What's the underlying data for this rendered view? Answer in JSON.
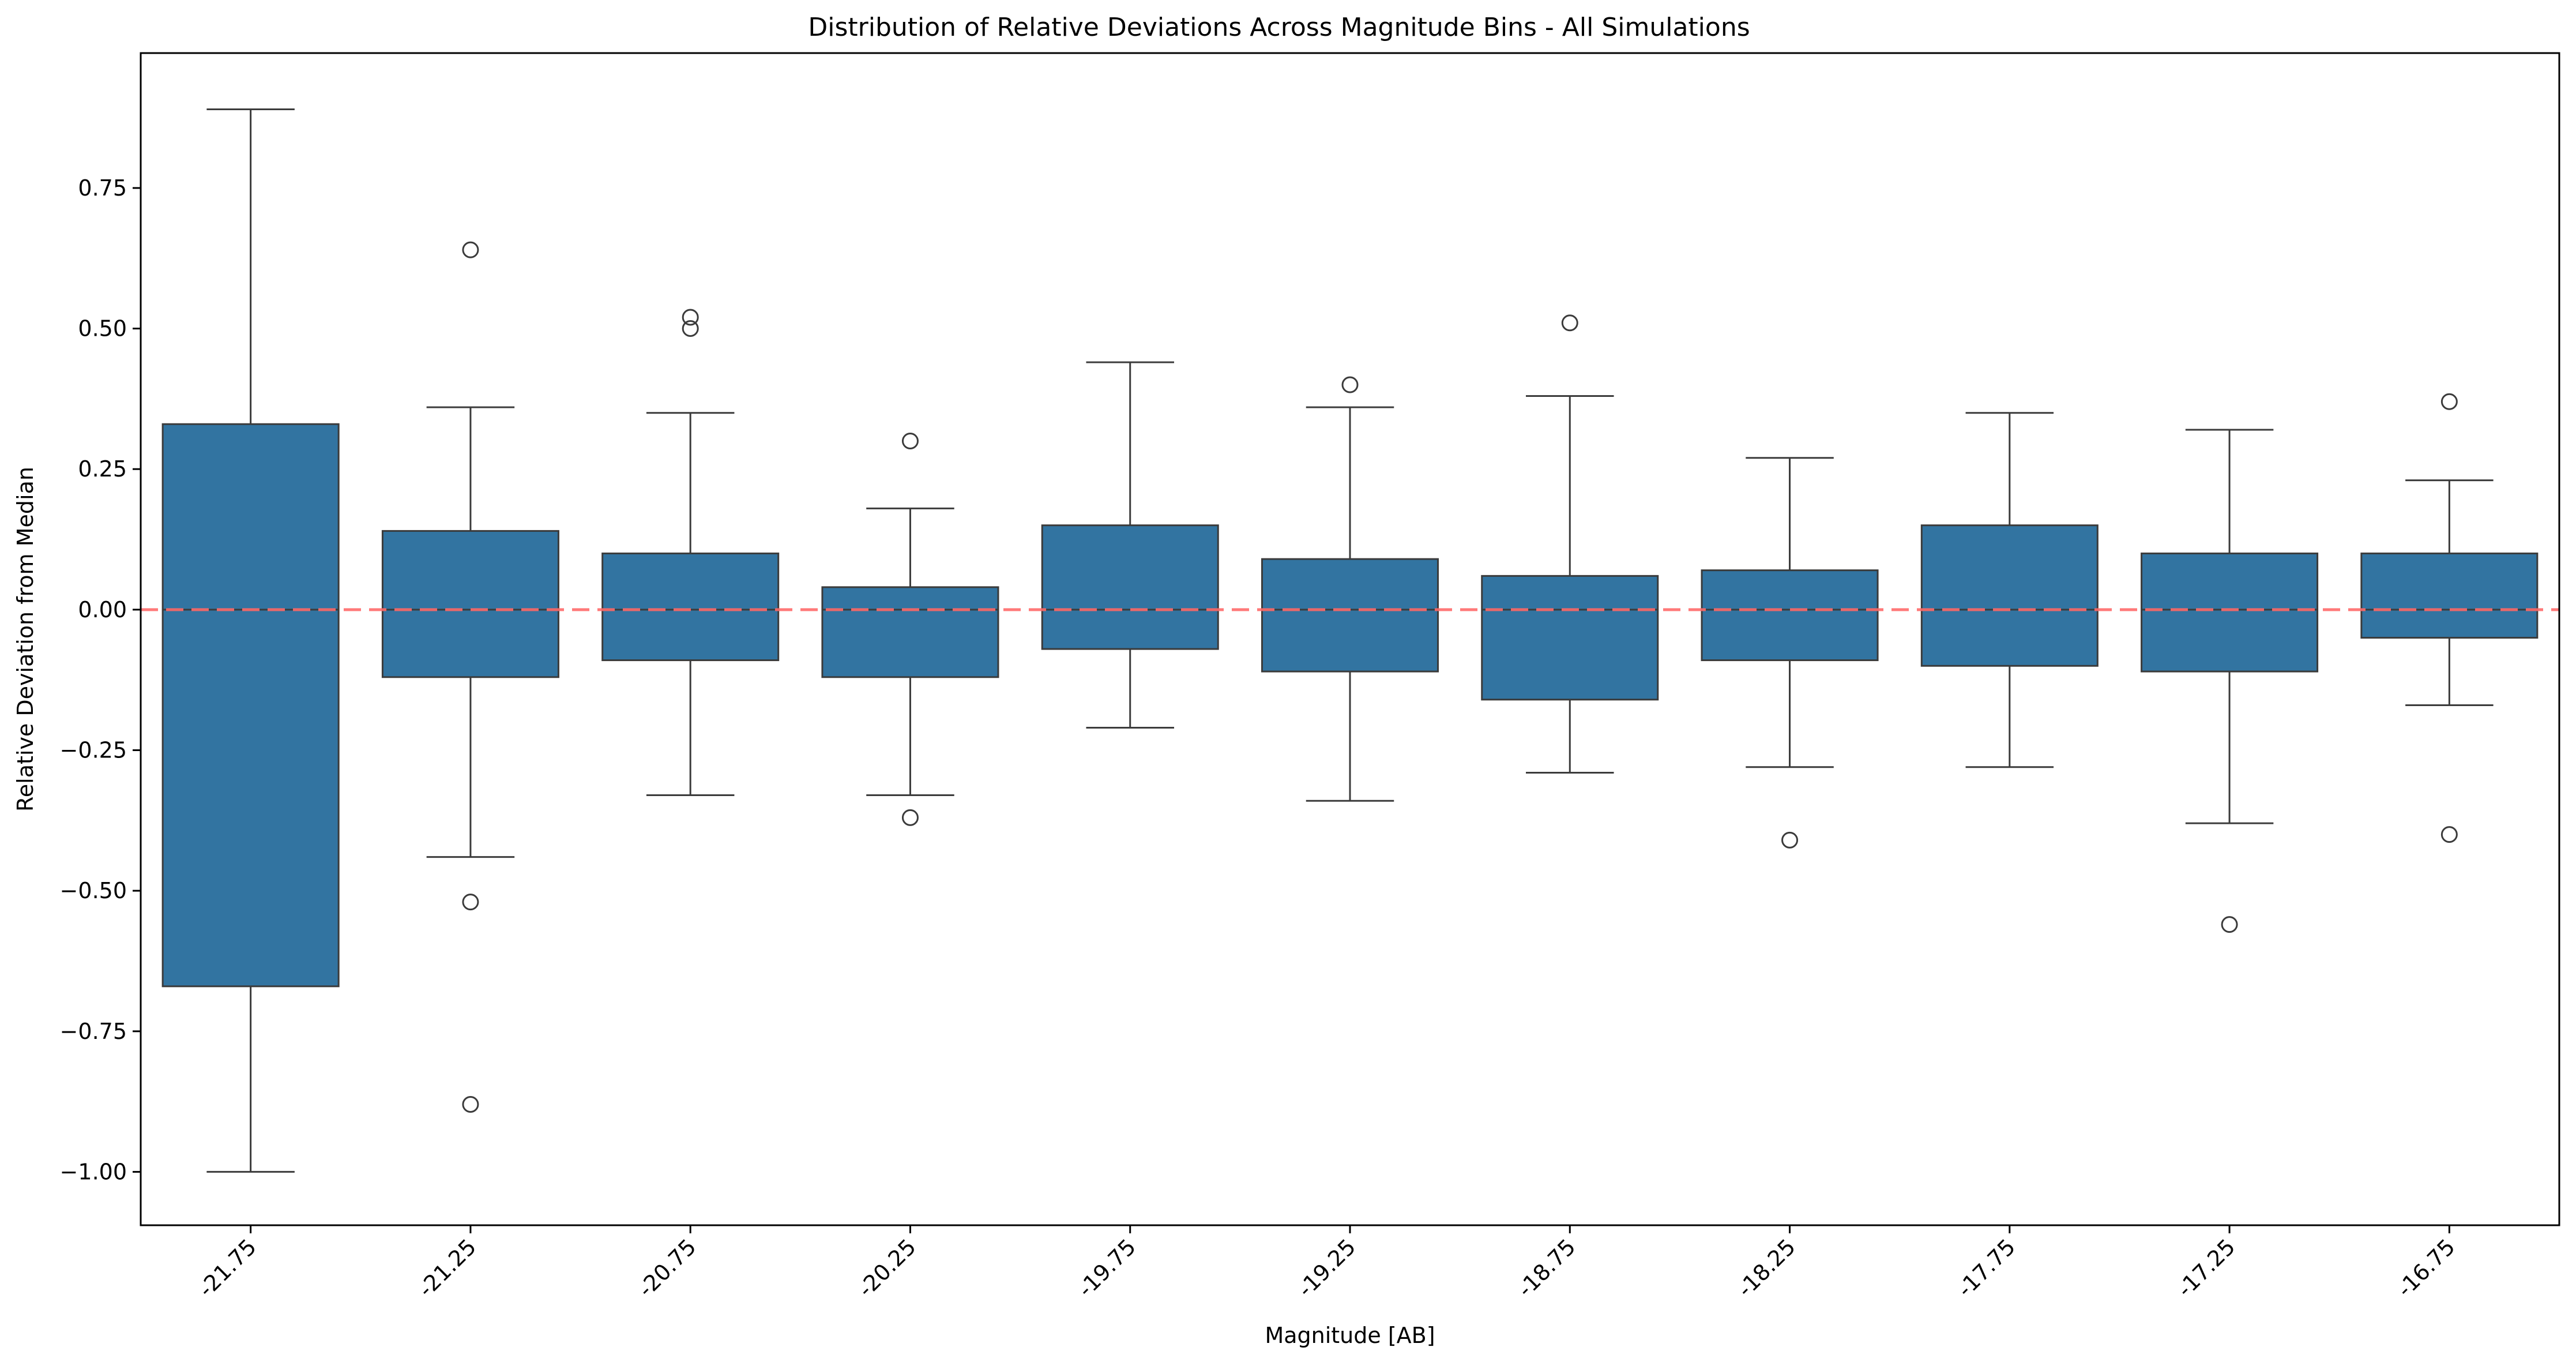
{
  "chart_data": {
    "type": "box",
    "title": "Distribution of Relative Deviations Across Magnitude Bins - All Simulations",
    "xlabel": "Magnitude [AB]",
    "ylabel": "Relative Deviation from Median",
    "ylim": [
      -1.095,
      0.99
    ],
    "yticks": [
      0.75,
      0.5,
      0.25,
      0.0,
      -0.25,
      -0.5,
      -0.75,
      -1.0
    ],
    "ytick_labels": [
      "0.75",
      "0.50",
      "0.25",
      "0.00",
      "−0.25",
      "−0.50",
      "−0.75",
      "−1.00"
    ],
    "categories": [
      "-21.75",
      "-21.25",
      "-20.75",
      "-20.25",
      "-19.75",
      "-19.25",
      "-18.75",
      "-18.25",
      "-17.75",
      "-17.25",
      "-16.75"
    ],
    "boxes": [
      {
        "whisker_low": -1.0,
        "q1": -0.67,
        "median": 0.0,
        "q3": 0.33,
        "whisker_high": 0.89,
        "outliers": []
      },
      {
        "whisker_low": -0.44,
        "q1": -0.12,
        "median": 0.0,
        "q3": 0.14,
        "whisker_high": 0.36,
        "outliers": [
          0.64,
          -0.52,
          -0.88
        ]
      },
      {
        "whisker_low": -0.33,
        "q1": -0.09,
        "median": 0.0,
        "q3": 0.1,
        "whisker_high": 0.35,
        "outliers": [
          0.52,
          0.5
        ]
      },
      {
        "whisker_low": -0.33,
        "q1": -0.12,
        "median": 0.0,
        "q3": 0.04,
        "whisker_high": 0.18,
        "outliers": [
          0.3,
          -0.37
        ]
      },
      {
        "whisker_low": -0.21,
        "q1": -0.07,
        "median": 0.0,
        "q3": 0.15,
        "whisker_high": 0.44,
        "outliers": []
      },
      {
        "whisker_low": -0.34,
        "q1": -0.11,
        "median": 0.0,
        "q3": 0.09,
        "whisker_high": 0.36,
        "outliers": [
          0.4
        ]
      },
      {
        "whisker_low": -0.29,
        "q1": -0.16,
        "median": 0.0,
        "q3": 0.06,
        "whisker_high": 0.38,
        "outliers": [
          0.51
        ]
      },
      {
        "whisker_low": -0.28,
        "q1": -0.09,
        "median": 0.0,
        "q3": 0.07,
        "whisker_high": 0.27,
        "outliers": [
          -0.41
        ]
      },
      {
        "whisker_low": -0.28,
        "q1": -0.1,
        "median": 0.0,
        "q3": 0.15,
        "whisker_high": 0.35,
        "outliers": []
      },
      {
        "whisker_low": -0.38,
        "q1": -0.11,
        "median": 0.0,
        "q3": 0.1,
        "whisker_high": 0.32,
        "outliers": [
          -0.56
        ]
      },
      {
        "whisker_low": -0.17,
        "q1": -0.05,
        "median": 0.0,
        "q3": 0.1,
        "whisker_high": 0.23,
        "outliers": [
          0.37,
          -0.4
        ]
      }
    ],
    "reference_line": {
      "y": 0.0,
      "color": "#ff6b6b",
      "style": "dashed"
    },
    "box_color": "#3274a1",
    "edge_color": "#3b3b3b",
    "grid": false
  }
}
